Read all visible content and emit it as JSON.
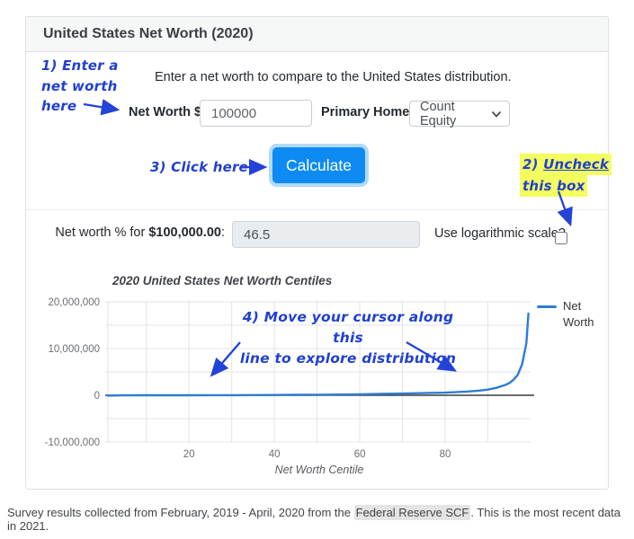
{
  "card": {
    "title": "United States Net Worth (2020)"
  },
  "intro": "Enter a net worth to compare to the United States distribution.",
  "form": {
    "net_worth_label": "Net Worth $:",
    "net_worth_value": "100000",
    "primary_home_label": "Primary Home:",
    "primary_home_value": "Count Equity",
    "calculate_label": "Calculate"
  },
  "result": {
    "label_prefix": "Net worth % for ",
    "label_amount": "$100,000.00",
    "label_suffix": ":",
    "value": "46.5",
    "log_label": "Use logarithmic scale?",
    "log_checked": false
  },
  "annotations": {
    "step1": {
      "line1": "1) Enter a",
      "line2": "net worth",
      "line3": "here"
    },
    "step2": {
      "number": "2) ",
      "word": "Uncheck",
      "line2": "this box"
    },
    "step3": "3) Click here",
    "step4": {
      "line1": "4) Move your cursor along this",
      "line2": "line to explore distribution"
    }
  },
  "chart_data": {
    "type": "line",
    "title": "2020 United States Net Worth Centiles",
    "xlabel": "Net Worth Centile",
    "ylabel": "",
    "xlim": [
      1,
      100
    ],
    "ylim": [
      -10000000,
      20000000
    ],
    "xticks": [
      20,
      40,
      60,
      80
    ],
    "yticks": [
      [
        -10000000,
        "-10,000,000"
      ],
      [
        0,
        "0"
      ],
      [
        10000000,
        "10,000,000"
      ],
      [
        20000000,
        "20,000,000"
      ]
    ],
    "xgrid_step": 10,
    "ygrid_step": 5000000,
    "grid": true,
    "legend_position": "right",
    "series": [
      {
        "name": "Net Worth",
        "color": "#2d7dd2",
        "points": [
          [
            1,
            -78000
          ],
          [
            3,
            -30000
          ],
          [
            5,
            -12000
          ],
          [
            8,
            -2000
          ],
          [
            10,
            1000
          ],
          [
            15,
            4000
          ],
          [
            20,
            7500
          ],
          [
            25,
            14000
          ],
          [
            30,
            27000
          ],
          [
            35,
            44000
          ],
          [
            40,
            67000
          ],
          [
            45,
            92000
          ],
          [
            50,
            122000
          ],
          [
            55,
            162000
          ],
          [
            60,
            213000
          ],
          [
            65,
            281000
          ],
          [
            70,
            370000
          ],
          [
            75,
            455000
          ],
          [
            80,
            558000
          ],
          [
            85,
            795000
          ],
          [
            88,
            1000000
          ],
          [
            90,
            1220000
          ],
          [
            92,
            1600000
          ],
          [
            94,
            2200000
          ],
          [
            95,
            2600000
          ],
          [
            96,
            3300000
          ],
          [
            97,
            4400000
          ],
          [
            98,
            6600000
          ],
          [
            99,
            11100000
          ],
          [
            99.5,
            17500000
          ]
        ]
      }
    ]
  },
  "footer": {
    "text_before": "Survey results collected from February, 2019 - April, 2020 from the ",
    "term": "Federal Reserve SCF",
    "text_after": ". This is the most recent data in 2021."
  },
  "colors": {
    "button_blue": "#0d8bf2",
    "line_blue": "#2d7dd2",
    "annotation_blue": "#2140d0",
    "highlight_yellow": "#f4fd5f",
    "result_input_bg": "#e9ecef",
    "header_bg": "#f6f7f7"
  }
}
